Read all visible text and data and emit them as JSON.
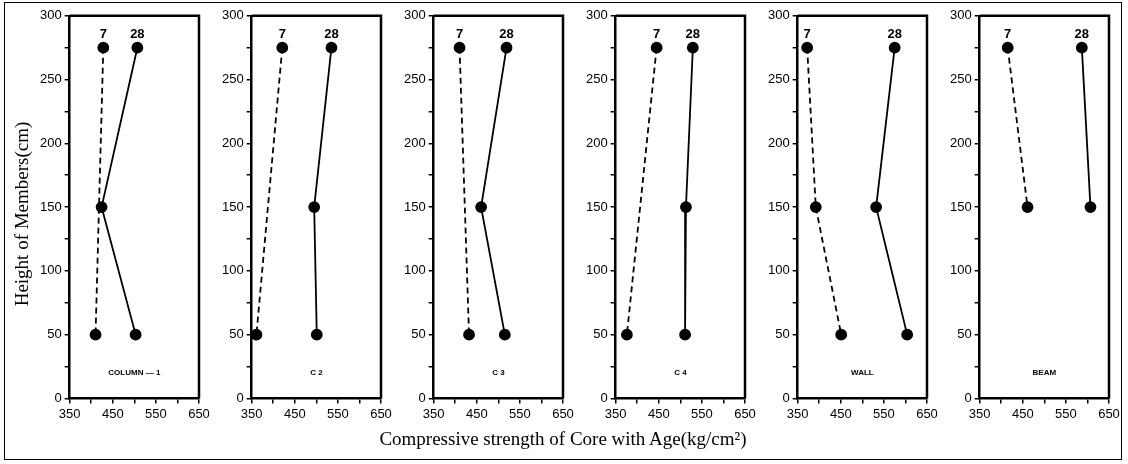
{
  "chart_data": [
    {
      "type": "line",
      "ylabel": "Height of Members(cm)",
      "annotations": [
        "COLUMN — 1"
      ],
      "xlim": [
        350,
        650
      ],
      "xticks": [
        350,
        {
          "value": 400,
          "label": null
        },
        450,
        {
          "value": 500,
          "label": null
        },
        550,
        {
          "value": 600,
          "label": null
        },
        650
      ],
      "ylim": [
        0,
        300
      ],
      "yticks": [
        0,
        {
          "value": 25,
          "label": null
        },
        50,
        {
          "value": 75,
          "label": null
        },
        100,
        {
          "value": 125,
          "label": null
        },
        150,
        {
          "value": 175,
          "label": null
        },
        200,
        {
          "value": 225,
          "label": null
        },
        250,
        {
          "value": 275,
          "label": null
        },
        300
      ],
      "grid": false,
      "legend": false,
      "marker": "circle",
      "series": [
        {
          "name": "7",
          "color": "#000000",
          "line_style": "dashed",
          "x": [
            428,
            410
          ],
          "values": [
            275,
            50
          ]
        },
        {
          "name": "28",
          "color": "#000000",
          "line_style": "solid",
          "x": [
            507,
            424,
            503
          ],
          "values": [
            275,
            150,
            50
          ]
        }
      ]
    },
    {
      "type": "line",
      "annotations": [
        "C 2"
      ],
      "xlim": [
        350,
        650
      ],
      "xticks": [
        350,
        {
          "value": 400,
          "label": null
        },
        450,
        {
          "value": 500,
          "label": null
        },
        550,
        {
          "value": 600,
          "label": null
        },
        650
      ],
      "ylim": [
        0,
        300
      ],
      "yticks": [
        0,
        {
          "value": 25,
          "label": null
        },
        50,
        {
          "value": 75,
          "label": null
        },
        100,
        {
          "value": 125,
          "label": null
        },
        150,
        {
          "value": 175,
          "label": null
        },
        200,
        {
          "value": 225,
          "label": null
        },
        250,
        {
          "value": 275,
          "label": null
        },
        300
      ],
      "grid": false,
      "legend": false,
      "marker": "circle",
      "series": [
        {
          "name": "7",
          "color": "#000000",
          "line_style": "dashed",
          "x": [
            421,
            361
          ],
          "values": [
            275,
            50
          ]
        },
        {
          "name": "28",
          "color": "#000000",
          "line_style": "solid",
          "x": [
            535,
            495,
            501
          ],
          "values": [
            275,
            150,
            50
          ]
        }
      ]
    },
    {
      "type": "line",
      "annotations": [
        "C 3"
      ],
      "xlim": [
        350,
        650
      ],
      "xticks": [
        350,
        {
          "value": 400,
          "label": null
        },
        450,
        {
          "value": 500,
          "label": null
        },
        550,
        {
          "value": 600,
          "label": null
        },
        650
      ],
      "ylim": [
        0,
        300
      ],
      "yticks": [
        0,
        {
          "value": 25,
          "label": null
        },
        50,
        {
          "value": 75,
          "label": null
        },
        100,
        {
          "value": 125,
          "label": null
        },
        150,
        {
          "value": 175,
          "label": null
        },
        200,
        {
          "value": 225,
          "label": null
        },
        250,
        {
          "value": 275,
          "label": null
        },
        300
      ],
      "grid": false,
      "legend": false,
      "marker": "circle",
      "series": [
        {
          "name": "7",
          "color": "#000000",
          "line_style": "dashed",
          "x": [
            410,
            432
          ],
          "values": [
            275,
            50
          ]
        },
        {
          "name": "28",
          "color": "#000000",
          "line_style": "solid",
          "x": [
            519,
            460,
            515
          ],
          "values": [
            275,
            150,
            50
          ]
        }
      ]
    },
    {
      "type": "line",
      "annotations": [
        "C 4"
      ],
      "xlim": [
        350,
        650
      ],
      "xticks": [
        350,
        {
          "value": 400,
          "label": null
        },
        450,
        {
          "value": 500,
          "label": null
        },
        550,
        {
          "value": 600,
          "label": null
        },
        650
      ],
      "ylim": [
        0,
        300
      ],
      "yticks": [
        0,
        {
          "value": 25,
          "label": null
        },
        50,
        {
          "value": 75,
          "label": null
        },
        100,
        {
          "value": 125,
          "label": null
        },
        150,
        {
          "value": 175,
          "label": null
        },
        200,
        {
          "value": 225,
          "label": null
        },
        250,
        {
          "value": 275,
          "label": null
        },
        300
      ],
      "grid": false,
      "legend": false,
      "marker": "circle",
      "series": [
        {
          "name": "7",
          "color": "#000000",
          "line_style": "dashed",
          "x": [
            445,
            376
          ],
          "values": [
            275,
            50
          ]
        },
        {
          "name": "28",
          "color": "#000000",
          "line_style": "solid",
          "x": [
            529,
            513,
            511
          ],
          "values": [
            275,
            150,
            50
          ]
        }
      ]
    },
    {
      "type": "line",
      "xlabel": "Compressive strength of Core with Age(kg/cm²)",
      "annotations": [
        "WALL"
      ],
      "xlim": [
        350,
        650
      ],
      "xticks": [
        350,
        {
          "value": 400,
          "label": null
        },
        450,
        {
          "value": 500,
          "label": null
        },
        550,
        {
          "value": 600,
          "label": null
        },
        650
      ],
      "ylim": [
        0,
        300
      ],
      "yticks": [
        0,
        {
          "value": 25,
          "label": null
        },
        50,
        {
          "value": 75,
          "label": null
        },
        100,
        {
          "value": 125,
          "label": null
        },
        150,
        {
          "value": 175,
          "label": null
        },
        200,
        {
          "value": 225,
          "label": null
        },
        250,
        {
          "value": 275,
          "label": null
        },
        300
      ],
      "grid": false,
      "legend": false,
      "marker": "circle",
      "series": [
        {
          "name": "7",
          "color": "#000000",
          "line_style": "dashed",
          "x": [
            372,
            392,
            451
          ],
          "values": [
            275,
            150,
            50
          ]
        },
        {
          "name": "28",
          "color": "#000000",
          "line_style": "solid",
          "x": [
            575,
            532,
            604
          ],
          "values": [
            275,
            150,
            50
          ]
        }
      ]
    },
    {
      "type": "line",
      "annotations": [
        "BEAM"
      ],
      "xlim": [
        350,
        650
      ],
      "xticks": [
        350,
        {
          "value": 400,
          "label": null
        },
        450,
        {
          "value": 500,
          "label": null
        },
        550,
        {
          "value": 600,
          "label": null
        },
        650
      ],
      "ylim": [
        0,
        300
      ],
      "yticks": [
        0,
        {
          "value": 25,
          "label": null
        },
        50,
        {
          "value": 75,
          "label": null
        },
        100,
        {
          "value": 125,
          "label": null
        },
        150,
        {
          "value": 175,
          "label": null
        },
        200,
        {
          "value": 225,
          "label": null
        },
        250,
        {
          "value": 275,
          "label": null
        },
        300
      ],
      "grid": false,
      "legend": false,
      "marker": "circle",
      "series": [
        {
          "name": "7",
          "color": "#000000",
          "line_style": "dashed",
          "x": [
            415,
            461
          ],
          "values": [
            275,
            150
          ]
        },
        {
          "name": "28",
          "color": "#000000",
          "line_style": "solid",
          "x": [
            587,
            607
          ],
          "values": [
            275,
            150
          ]
        }
      ]
    }
  ]
}
